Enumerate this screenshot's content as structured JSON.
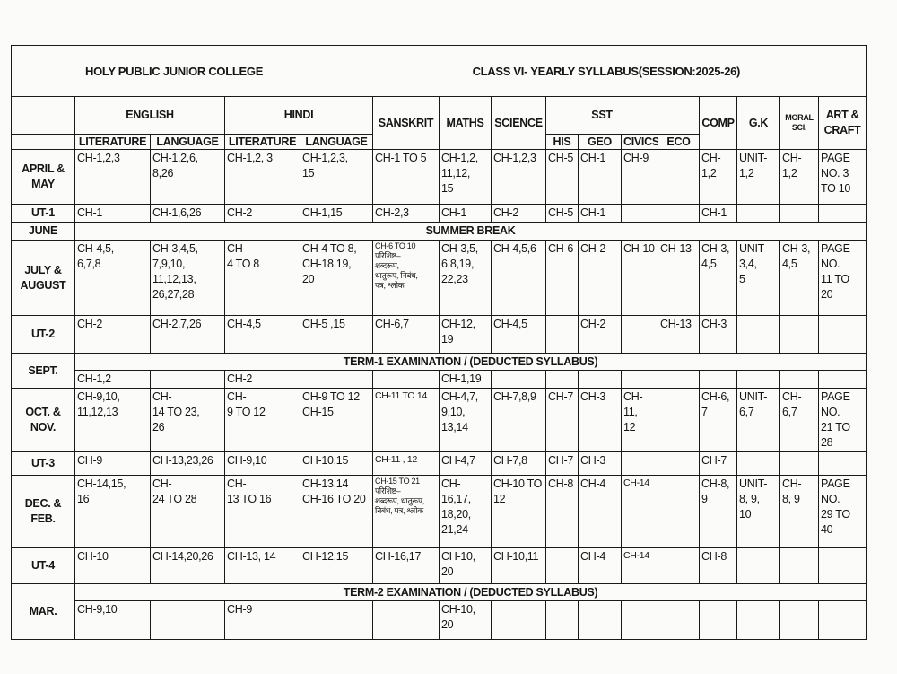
{
  "title_left": "HOLY PUBLIC JUNIOR COLLEGE",
  "title_right": "CLASS VI- YEARLY SYLLABUS(SESSION:2025-26)",
  "header_row1": [
    {
      "label": "",
      "colspan": 1,
      "rowspan": 1
    },
    {
      "label": "ENGLISH",
      "colspan": 2,
      "rowspan": 1
    },
    {
      "label": "HINDI",
      "colspan": 2,
      "rowspan": 1
    },
    {
      "label": "SANSKRIT",
      "colspan": 1,
      "rowspan": 2
    },
    {
      "label": "MATHS",
      "colspan": 1,
      "rowspan": 2
    },
    {
      "label": "SCIENCE",
      "colspan": 1,
      "rowspan": 2
    },
    {
      "label": "SST",
      "colspan": 3,
      "rowspan": 1
    },
    {
      "label": "",
      "colspan": 1,
      "rowspan": 1
    },
    {
      "label": "COMP",
      "colspan": 1,
      "rowspan": 2
    },
    {
      "label": "G.K",
      "colspan": 1,
      "rowspan": 2
    },
    {
      "label": "MORAL\nSCI.",
      "colspan": 1,
      "rowspan": 2,
      "small": true
    },
    {
      "label": "ART &\nCRAFT",
      "colspan": 1,
      "rowspan": 2
    }
  ],
  "header_row2": [
    "",
    "LITERATURE",
    "LANGUAGE",
    "LITERATURE",
    "LANGUAGE",
    "HIS",
    "GEO",
    "CIVICS",
    "ECO"
  ],
  "rows": [
    {
      "month": "APRIL &\nMAY",
      "cells": [
        "CH-1,2,3",
        "CH-1,2,6,\n8,26",
        "CH-1,2, 3",
        "CH-1,2,3,\n15",
        "CH-1 TO 5",
        "CH-1,2,\n11,12,\n15",
        "CH-1,2,3",
        "CH-5",
        "CH-1",
        "CH-9",
        "",
        "CH-\n1,2",
        "UNIT-\n1,2",
        "CH-\n1,2",
        "PAGE\nNO. 3\nTO 10"
      ]
    },
    {
      "month": "UT-1",
      "cells": [
        "CH-1",
        "CH-1,6,26",
        "CH-2",
        "CH-1,15",
        "CH-2,3",
        "CH-1",
        "CH-2",
        "CH-5",
        "CH-1",
        "",
        "",
        "CH-1",
        "",
        "",
        ""
      ]
    },
    {
      "month": "JUNE",
      "banner": "SUMMER BREAK"
    },
    {
      "month": "JULY &\nAUGUST",
      "cells": [
        "CH-4,5,\n6,7,8",
        "CH-3,4,5,\n7,9,10,\n11,12,13,\n26,27,28",
        "CH-\n4 TO 8",
        "CH-4 TO 8,\nCH-18,19,\n20",
        "CH-6 TO 10\nपरिशिष्ट–\nशब्दरूप,\nधातुरूप, निबंध,\nपत्र, श्लोक",
        "CH-3,5,\n6,8,19,\n22,23",
        "CH-4,5,6",
        "CH-6",
        "CH-2",
        "CH-10",
        "CH-13",
        "CH-3,\n4,5",
        "UNIT-\n3,4,\n5",
        "CH-3,\n4,5",
        "PAGE\nNO.\n11 TO\n20"
      ]
    },
    {
      "month": "UT-2",
      "cells": [
        "CH-2",
        "CH-2,7,26",
        "CH-4,5",
        "CH-5 ,15",
        "CH-6,7",
        "CH-12,\n19",
        "CH-4,5",
        "",
        "CH-2",
        "",
        "CH-13",
        "CH-3",
        "",
        "",
        ""
      ]
    },
    {
      "month": "SEPT.",
      "banner": "TERM-1 EXAMINATION / (DEDUCTED SYLLABUS)",
      "cells": [
        "CH-1,2",
        "",
        "CH-2",
        "",
        "",
        "CH-1,19",
        "",
        "",
        "",
        "",
        "",
        "",
        "",
        "",
        ""
      ]
    },
    {
      "month": "OCT. &\nNOV.",
      "cells": [
        "CH-9,10,\n11,12,13",
        "CH-\n14 TO 23,\n26",
        "CH-\n9 TO 12",
        "CH-9 TO 12\nCH-15",
        "CH-11 TO 14",
        "CH-4,7,\n9,10,\n13,14",
        "CH-7,8,9",
        "CH-7",
        "CH-3",
        "CH-\n11,\n12",
        "",
        "CH-6,\n7",
        "UNIT-\n6,7",
        "CH-\n6,7",
        "PAGE\nNO.\n21 TO\n28"
      ]
    },
    {
      "month": "UT-3",
      "cells": [
        "CH-9",
        "CH-13,23,26",
        "CH-9,10",
        "CH-10,15",
        "CH-11 , 12",
        "CH-4,7",
        "CH-7,8",
        "CH-7",
        "CH-3",
        "",
        "",
        "CH-7",
        "",
        "",
        ""
      ]
    },
    {
      "month": "DEC. &\nFEB.",
      "cells": [
        "CH-14,15,\n16",
        "CH-\n24 TO 28",
        "CH-\n13 TO 16",
        "CH-13,14\nCH-16 TO 20",
        "CH-15 TO 21\nपरिशिष्ट–\nशब्दरूप, धातुरूप,\nनिबंध, पत्र, श्लोक",
        "CH-\n16,17,\n18,20,\n21,24",
        "CH-10 TO\n12",
        "CH-8",
        "CH-4",
        "CH-14",
        "",
        "CH-8,\n9",
        "UNIT-\n8, 9,\n10",
        "CH-\n8, 9",
        "PAGE\nNO.\n29 TO\n40"
      ]
    },
    {
      "month": "UT-4",
      "cells": [
        "CH-10",
        "CH-14,20,26",
        "CH-13, 14",
        "CH-12,15",
        "CH-16,17",
        "CH-10,\n20",
        "CH-10,11",
        "",
        "CH-4",
        "CH-14",
        "",
        "CH-8",
        "",
        "",
        ""
      ]
    },
    {
      "month": "MAR.",
      "banner": "TERM-2 EXAMINATION / (DEDUCTED SYLLABUS)",
      "cells": [
        "CH-9,10",
        "",
        "CH-9",
        "",
        "",
        "CH-10,\n20",
        "",
        "",
        "",
        "",
        "",
        "",
        "",
        "",
        ""
      ]
    }
  ]
}
